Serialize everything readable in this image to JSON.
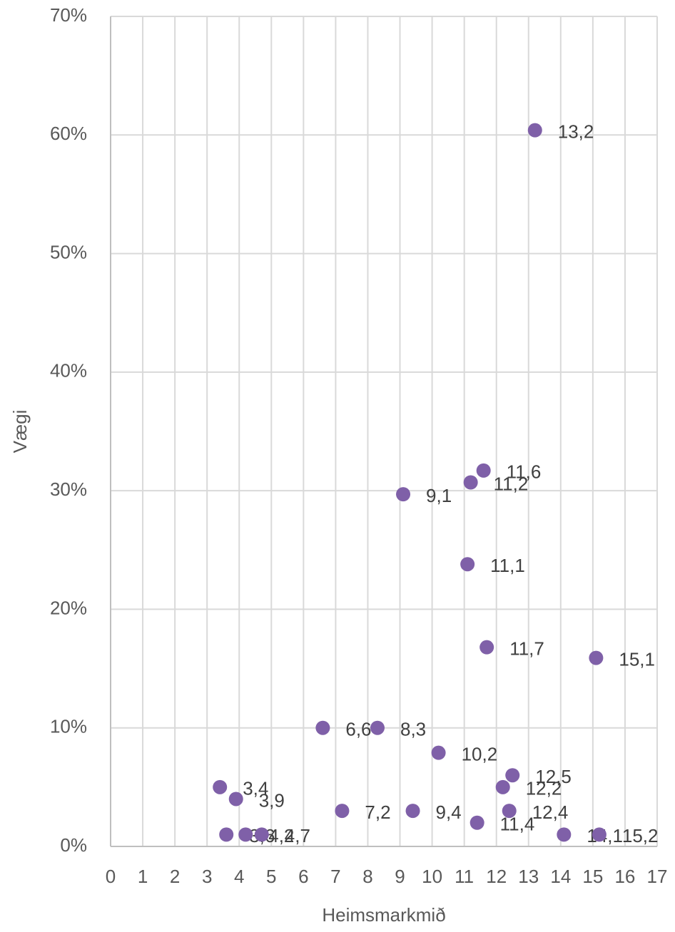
{
  "chart_data": {
    "type": "scatter",
    "x_label": "Heimsmarkmið",
    "y_label": "Vægi",
    "color": "#7f60a8",
    "grid": true,
    "x": [
      13.2,
      11.6,
      11.2,
      9.1,
      11.1,
      11.7,
      15.1,
      6.6,
      8.3,
      10.2,
      12.5,
      12.2,
      3.4,
      3.9,
      7.2,
      9.4,
      12.4,
      11.4,
      3.6,
      4.2,
      4.7,
      14.1,
      15.2
    ],
    "values": [
      60.4,
      31.7,
      30.7,
      29.7,
      23.8,
      16.8,
      15.9,
      10,
      10,
      7.9,
      6,
      5,
      5,
      4,
      3,
      3,
      3,
      2,
      1,
      1,
      1,
      1,
      1
    ],
    "value_labels": [
      "13,2",
      "11,6",
      "11,2",
      "9,1",
      "11,1",
      "11,7",
      "15,1",
      "6,6",
      "8,3",
      "10,2",
      "12,5",
      "12,2",
      "3,4",
      "3,9",
      "7,2",
      "9,4",
      "12,4",
      "11,4",
      "3,6",
      "4,2",
      "4,7",
      "14,1",
      "15,2"
    ],
    "xlim": [
      0,
      17
    ],
    "xticks": [
      0,
      1,
      2,
      3,
      4,
      5,
      6,
      7,
      8,
      9,
      10,
      11,
      12,
      13,
      14,
      15,
      16,
      17
    ],
    "ylim": [
      0,
      70
    ],
    "yticks": [
      {
        "value": 0,
        "label": "0%"
      },
      {
        "value": 10,
        "label": "10%"
      },
      {
        "value": 20,
        "label": "20%"
      },
      {
        "value": 30,
        "label": "30%"
      },
      {
        "value": 40,
        "label": "40%"
      },
      {
        "value": 50,
        "label": "50%"
      },
      {
        "value": 60,
        "label": "60%"
      },
      {
        "value": 70,
        "label": "70%"
      }
    ]
  }
}
